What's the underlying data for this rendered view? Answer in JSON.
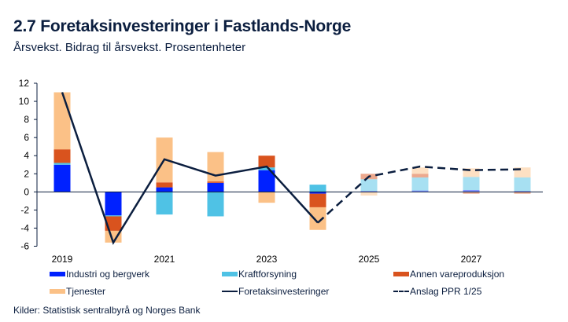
{
  "title": "2.7 Foretaksinvesteringer i Fastlands-Norge",
  "subtitle": "Årsvekst. Bidrag til årsvekst. Prosentenheter",
  "source": "Kilder: Statistisk sentralbyrå og Norges Bank",
  "chart_data": {
    "type": "bar",
    "title": "2.7 Foretaksinvesteringer i Fastlands-Norge",
    "subtitle": "Årsvekst. Bidrag til årsvekst. Prosentenheter",
    "xlabel": "",
    "ylabel": "",
    "ylim": [
      -6,
      12
    ],
    "yticks": [
      -6,
      -4,
      -2,
      0,
      2,
      4,
      6,
      8,
      10,
      12
    ],
    "categories": [
      "2019",
      "2020",
      "2021",
      "2022",
      "2023",
      "2024",
      "2025",
      "2026",
      "2027",
      "2028"
    ],
    "xtick_labels": [
      "2019",
      "2021",
      "2023",
      "2025",
      "2027"
    ],
    "forecast_start": "2025",
    "grid": false,
    "legend_position": "bottom",
    "series": [
      {
        "name": "Industri og bergverk",
        "kind": "stacked-bar",
        "color": "#0021ff",
        "values": [
          3.0,
          -2.6,
          0.5,
          1.0,
          2.4,
          -0.2,
          0.1,
          0.15,
          0.2,
          0.1
        ]
      },
      {
        "name": "Kraftforsyning",
        "kind": "stacked-bar",
        "color": "#4fc2e5",
        "values": [
          0.2,
          -0.1,
          -2.5,
          -2.7,
          0.3,
          0.8,
          1.3,
          1.45,
          1.45,
          1.5
        ]
      },
      {
        "name": "Annen vareproduksjon",
        "kind": "stacked-bar",
        "color": "#d9531e",
        "values": [
          1.5,
          -1.6,
          0.55,
          0.15,
          1.3,
          -1.5,
          0.6,
          0.4,
          -0.2,
          -0.2
        ]
      },
      {
        "name": "Tjenester",
        "kind": "stacked-bar",
        "color": "#fbc187",
        "values": [
          6.3,
          -1.3,
          4.95,
          3.25,
          -1.2,
          -2.5,
          -0.4,
          0.7,
          0.95,
          1.1
        ]
      },
      {
        "name": "Foretaksinvesteringer",
        "kind": "line",
        "color": "#0b1e3f",
        "values": [
          11.0,
          -5.6,
          3.6,
          1.8,
          2.8,
          -3.4,
          null,
          null,
          null,
          null
        ]
      },
      {
        "name": "Anslag PPR 1/25",
        "kind": "dashed-line",
        "color": "#0b1e3f",
        "values": [
          null,
          null,
          null,
          null,
          null,
          -3.4,
          1.7,
          2.8,
          2.4,
          2.5
        ]
      }
    ]
  },
  "legend": [
    {
      "label": "Industri og bergverk",
      "type": "swatch",
      "color": "#0021ff"
    },
    {
      "label": "Kraftforsyning",
      "type": "swatch",
      "color": "#4fc2e5"
    },
    {
      "label": "Annen vareproduksjon",
      "type": "swatch",
      "color": "#d9531e"
    },
    {
      "label": "Tjenester",
      "type": "swatch",
      "color": "#fbc187"
    },
    {
      "label": "Foretaksinvesteringer",
      "type": "line"
    },
    {
      "label": "Anslag PPR 1/25",
      "type": "dash"
    }
  ]
}
